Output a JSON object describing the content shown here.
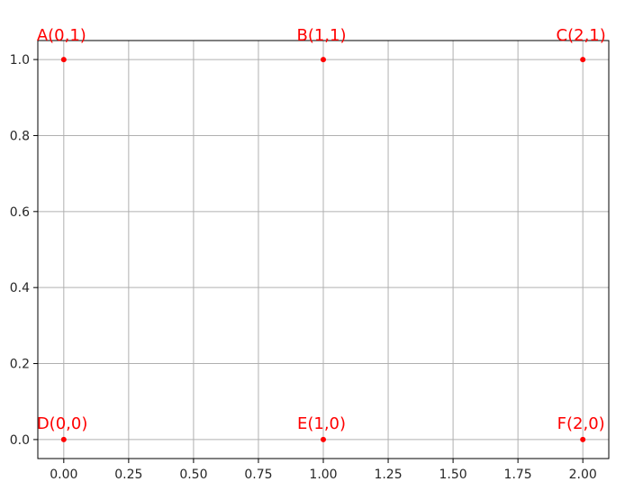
{
  "chart_data": {
    "type": "scatter",
    "title": "",
    "xlabel": "",
    "ylabel": "",
    "xlim": [
      -0.1,
      2.1
    ],
    "ylim": [
      -0.05,
      1.05
    ],
    "grid": true,
    "x_ticks": [
      0.0,
      0.25,
      0.5,
      0.75,
      1.0,
      1.25,
      1.5,
      1.75,
      2.0
    ],
    "x_tick_labels": [
      "0.00",
      "0.25",
      "0.50",
      "0.75",
      "1.00",
      "1.25",
      "1.50",
      "1.75",
      "2.00"
    ],
    "y_ticks": [
      0.0,
      0.2,
      0.4,
      0.6,
      0.8,
      1.0
    ],
    "y_tick_labels": [
      "0.0",
      "0.2",
      "0.4",
      "0.6",
      "0.8",
      "1.0"
    ],
    "color": "#ff0000",
    "points": [
      {
        "x": 0,
        "y": 1,
        "label": "A(0,1)"
      },
      {
        "x": 1,
        "y": 1,
        "label": "B(1,1)"
      },
      {
        "x": 2,
        "y": 1,
        "label": "C(2,1)"
      },
      {
        "x": 0,
        "y": 0,
        "label": "D(0,0)"
      },
      {
        "x": 1,
        "y": 0,
        "label": "E(1,0)"
      },
      {
        "x": 2,
        "y": 0,
        "label": "F(2,0)"
      }
    ]
  }
}
